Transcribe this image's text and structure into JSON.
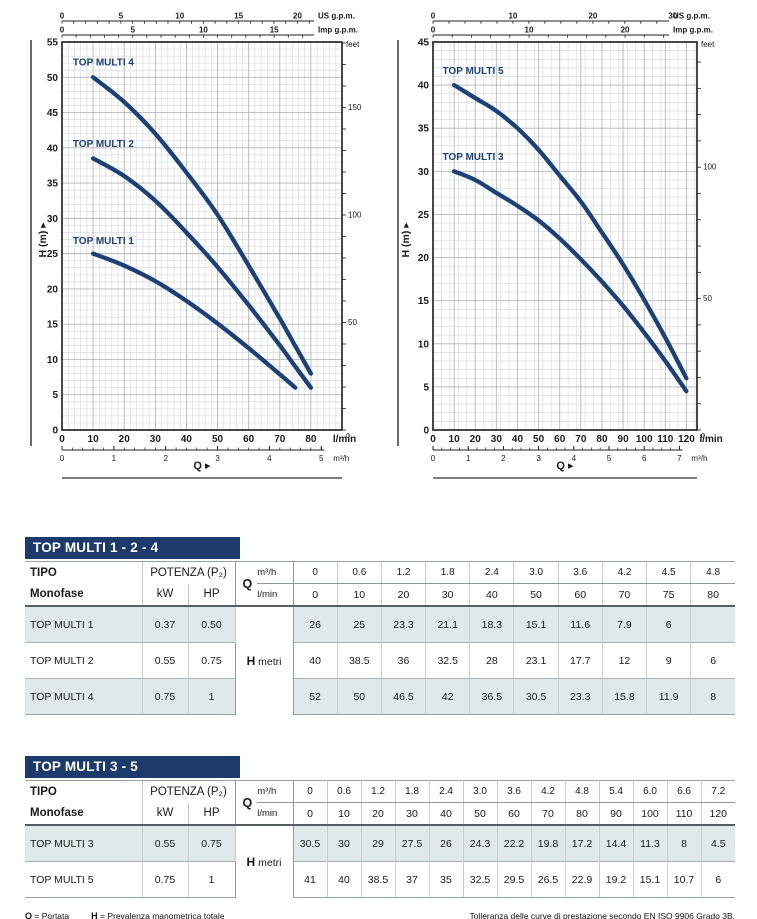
{
  "colors": {
    "navy": "#1c3a6b",
    "curve": "#1c4179",
    "grid_minor": "#dadcde",
    "grid_major": "#b7babd",
    "frame": "#1c1c1c",
    "row_shade": "#dfe9ea"
  },
  "chart_data": [
    {
      "type": "line",
      "name": "TOP MULTI 1-2-4 performance curves",
      "xlabel": "Q",
      "ylabel": "H (m)",
      "x_unit": "l/min",
      "x_ticks": [
        0,
        10,
        20,
        30,
        40,
        50,
        60,
        70,
        80
      ],
      "x_plot_max": 90,
      "x_minor": 2,
      "y_max": 55,
      "y_step": 5,
      "y_minor": 1,
      "top_axes": [
        {
          "unit": "US g.p.m.",
          "factor": 3.785,
          "labels": [
            0,
            5,
            10,
            15,
            20
          ],
          "minor": 1
        },
        {
          "unit": "Imp g.p.m.",
          "factor": 4.546,
          "labels": [
            0,
            5,
            10,
            15
          ],
          "minor": 1
        }
      ],
      "right_axis": {
        "unit": "feet",
        "m_per_unit": 0.3048,
        "labels": [
          150,
          100,
          50,
          0
        ],
        "minor_step": 10
      },
      "secondary_x": {
        "unit": "m³/h",
        "lmin_per_unit": 16.667,
        "ticks": [
          0,
          1,
          2,
          3,
          4,
          5
        ],
        "minor": 0.2
      },
      "series": [
        {
          "name": "TOP MULTI 4",
          "label_at": [
            3.5,
            51.7
          ],
          "points": [
            [
              10,
              50
            ],
            [
              20,
              46.5
            ],
            [
              30,
              42
            ],
            [
              40,
              36.5
            ],
            [
              50,
              30.5
            ],
            [
              60,
              23.3
            ],
            [
              70,
              15.8
            ],
            [
              75,
              11.9
            ],
            [
              80,
              8
            ]
          ]
        },
        {
          "name": "TOP MULTI 2",
          "label_at": [
            3.5,
            40.1
          ],
          "points": [
            [
              10,
              38.5
            ],
            [
              20,
              36
            ],
            [
              30,
              32.5
            ],
            [
              40,
              28
            ],
            [
              50,
              23.1
            ],
            [
              60,
              17.7
            ],
            [
              70,
              12
            ],
            [
              75,
              9
            ],
            [
              80,
              6
            ]
          ]
        },
        {
          "name": "TOP MULTI 1",
          "label_at": [
            3.5,
            26.4
          ],
          "points": [
            [
              10,
              25
            ],
            [
              20,
              23.3
            ],
            [
              30,
              21.1
            ],
            [
              40,
              18.3
            ],
            [
              50,
              15.1
            ],
            [
              60,
              11.6
            ],
            [
              70,
              7.9
            ],
            [
              75,
              6
            ]
          ]
        }
      ]
    },
    {
      "type": "line",
      "name": "TOP MULTI 3-5 performance curves",
      "xlabel": "Q",
      "ylabel": "H (m)",
      "x_unit": "l/min",
      "x_ticks": [
        0,
        10,
        20,
        30,
        40,
        50,
        60,
        70,
        80,
        90,
        100,
        110,
        120
      ],
      "x_plot_max": 125,
      "x_minor": 4,
      "y_max": 45,
      "y_step": 5,
      "y_minor": 1,
      "top_axes": [
        {
          "unit": "US g.p.m.",
          "factor": 3.785,
          "labels": [
            0,
            10,
            20,
            30
          ],
          "minor": 2
        },
        {
          "unit": "Imp g.p.m.",
          "factor": 4.546,
          "labels": [
            0,
            10,
            20
          ],
          "minor": 2
        }
      ],
      "right_axis": {
        "unit": "feet",
        "m_per_unit": 0.3048,
        "labels": [
          100,
          50,
          0
        ],
        "minor_step": 10
      },
      "secondary_x": {
        "unit": "m³/h",
        "lmin_per_unit": 16.667,
        "ticks": [
          0,
          1,
          2,
          3,
          4,
          5,
          6,
          7
        ],
        "minor": 0.25
      },
      "series": [
        {
          "name": "TOP MULTI 5",
          "label_at": [
            4.5,
            41.3
          ],
          "points": [
            [
              10,
              40
            ],
            [
              20,
              38.5
            ],
            [
              30,
              37
            ],
            [
              40,
              35
            ],
            [
              50,
              32.5
            ],
            [
              60,
              29.5
            ],
            [
              70,
              26.5
            ],
            [
              80,
              22.9
            ],
            [
              90,
              19.2
            ],
            [
              100,
              15.1
            ],
            [
              110,
              10.7
            ],
            [
              120,
              6
            ]
          ]
        },
        {
          "name": "TOP MULTI 3",
          "label_at": [
            4.5,
            31.3
          ],
          "points": [
            [
              10,
              30
            ],
            [
              20,
              29
            ],
            [
              30,
              27.5
            ],
            [
              40,
              26
            ],
            [
              50,
              24.3
            ],
            [
              60,
              22.2
            ],
            [
              70,
              19.8
            ],
            [
              80,
              17.2
            ],
            [
              90,
              14.4
            ],
            [
              100,
              11.3
            ],
            [
              110,
              8
            ],
            [
              120,
              4.5
            ]
          ]
        }
      ]
    }
  ],
  "tables": [
    {
      "title": "TOP MULTI 1 - 2 - 4",
      "tipo_label": "TIPO",
      "monofase_label": "Monofase",
      "potenza_label": "POTENZA (P₂)",
      "kw_label": "kW",
      "hp_label": "HP",
      "q_label": "Q",
      "q_units_top": "m³/h",
      "q_units_bottom": "l/min",
      "h_label": "H",
      "h_unit": "metri",
      "m3h": [
        "0",
        "0.6",
        "1.2",
        "1.8",
        "2.4",
        "3.0",
        "3.6",
        "4.2",
        "4.5",
        "4.8"
      ],
      "lmin": [
        "0",
        "10",
        "20",
        "30",
        "40",
        "50",
        "60",
        "70",
        "75",
        "80"
      ],
      "rows": [
        {
          "name": "TOP MULTI 1",
          "kw": "0.37",
          "hp": "0.50",
          "values": [
            "26",
            "25",
            "23.3",
            "21.1",
            "18.3",
            "15.1",
            "11.6",
            "7.9",
            "6",
            ""
          ]
        },
        {
          "name": "TOP MULTI 2",
          "kw": "0.55",
          "hp": "0.75",
          "values": [
            "40",
            "38.5",
            "36",
            "32.5",
            "28",
            "23.1",
            "17.7",
            "12",
            "9",
            "6"
          ]
        },
        {
          "name": "TOP MULTI 4",
          "kw": "0.75",
          "hp": "1",
          "values": [
            "52",
            "50",
            "46.5",
            "42",
            "36.5",
            "30.5",
            "23.3",
            "15.8",
            "11.9",
            "8"
          ]
        }
      ]
    },
    {
      "title": "TOP MULTI 3 - 5",
      "tipo_label": "TIPO",
      "monofase_label": "Monofase",
      "potenza_label": "POTENZA (P₂)",
      "kw_label": "kW",
      "hp_label": "HP",
      "q_label": "Q",
      "q_units_top": "m³/h",
      "q_units_bottom": "l/min",
      "h_label": "H",
      "h_unit": "metri",
      "m3h": [
        "0",
        "0.6",
        "1.2",
        "1.8",
        "2.4",
        "3.0",
        "3.6",
        "4.2",
        "4.8",
        "5.4",
        "6.0",
        "6.6",
        "7.2"
      ],
      "lmin": [
        "0",
        "10",
        "20",
        "30",
        "40",
        "50",
        "60",
        "70",
        "80",
        "90",
        "100",
        "110",
        "120"
      ],
      "rows": [
        {
          "name": "TOP MULTI 3",
          "kw": "0.55",
          "hp": "0.75",
          "values": [
            "30.5",
            "30",
            "29",
            "27.5",
            "26",
            "24.3",
            "22.2",
            "19.8",
            "17.2",
            "14.4",
            "11.3",
            "8",
            "4.5"
          ]
        },
        {
          "name": "TOP MULTI 5",
          "kw": "0.75",
          "hp": "1",
          "values": [
            "41",
            "40",
            "38.5",
            "37",
            "35",
            "32.5",
            "29.5",
            "26.5",
            "22.9",
            "19.2",
            "15.1",
            "10.7",
            "6"
          ]
        }
      ]
    }
  ],
  "footer": {
    "q_sym": "Q",
    "q_text": "= Portata",
    "h_sym": "H",
    "h_text": "= Prevalenza manometrica totale",
    "tolerance": "Tolleranza delle curve di prestazione secondo EN ISO 9906 Grado 3B."
  }
}
